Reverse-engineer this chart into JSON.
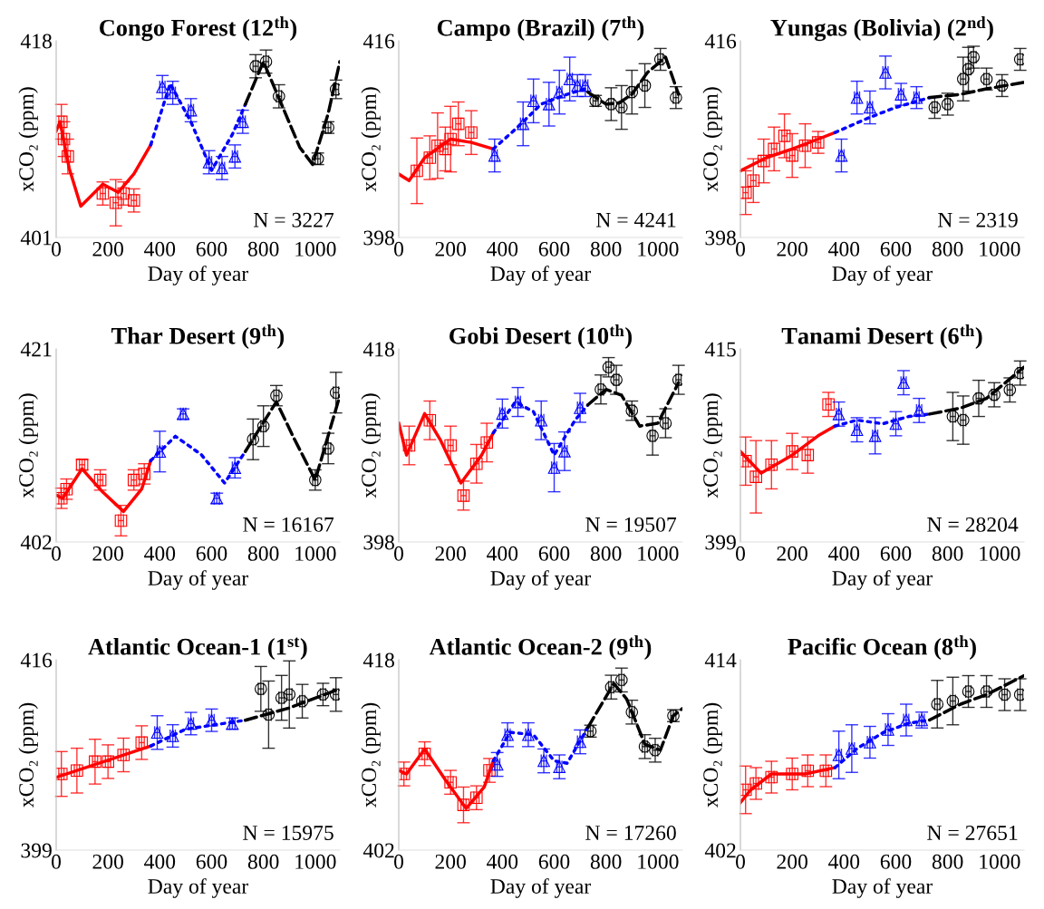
{
  "chart_data": [
    {
      "type": "scatter",
      "title": "Congo Forest (12$^{th}$)",
      "xlabel": "Day of year",
      "ylabel": "xCO₂ (ppm)",
      "xlim": [
        0,
        1095
      ],
      "xticks": [
        0,
        200,
        400,
        600,
        800,
        1000
      ],
      "ylim": [
        401,
        418
      ],
      "yticks": [
        401,
        418
      ],
      "grid": false,
      "legend": false,
      "annotations": [
        "N = 3227"
      ],
      "series": [
        {
          "type": "scatter",
          "color": "#ff0000",
          "marker": "square",
          "x": [
            20,
            30,
            45,
            180,
            230,
            260,
            300
          ],
          "values": [
            411,
            409.5,
            408,
            404.8,
            404,
            404.8,
            404.2
          ],
          "errors": [
            1.5,
            1.5,
            1.5,
            1,
            2,
            1,
            1
          ],
          "xerrors": [
            10,
            10,
            10,
            10,
            10,
            10,
            10
          ]
        },
        {
          "type": "scatter",
          "color": "#0000ff",
          "marker": "triangle",
          "x": [
            410,
            450,
            520,
            590,
            640,
            690,
            720
          ],
          "values": [
            414,
            413.5,
            412,
            407.5,
            407,
            408,
            411
          ],
          "errors": [
            1,
            1,
            1,
            1,
            1,
            1,
            1
          ],
          "xerrors": [
            10,
            10,
            10,
            10,
            10,
            10,
            10
          ]
        },
        {
          "type": "scatter",
          "color": "#000000",
          "marker": "circle",
          "x": [
            770,
            810,
            860,
            1010,
            1050,
            1080
          ],
          "values": [
            415.8,
            416.2,
            413.2,
            407.8,
            410.5,
            413.8
          ],
          "errors": [
            1,
            1,
            1,
            0.5,
            0.5,
            0.8
          ],
          "xerrors": [
            10,
            10,
            10,
            10,
            10,
            10
          ]
        },
        {
          "type": "line",
          "color": "#ff0000",
          "line_style": "solid",
          "x": [
            0,
            15,
            50,
            95,
            180,
            240,
            300,
            365
          ],
          "values": [
            410.2,
            411,
            407,
            403.7,
            405.6,
            404.9,
            406.5,
            409
          ]
        },
        {
          "type": "line",
          "color": "#0000ff",
          "line_style": "dotted",
          "x": [
            365,
            440,
            520,
            600,
            680,
            730
          ],
          "values": [
            409,
            414.3,
            411,
            406.8,
            409.9,
            412.5
          ]
        },
        {
          "type": "line",
          "color": "#000000",
          "line_style": "dashed",
          "x": [
            730,
            800,
            870,
            940,
            990,
            1050,
            1095
          ],
          "values": [
            412.5,
            416.2,
            412.5,
            408.8,
            407.3,
            411.7,
            416.2
          ]
        }
      ]
    },
    {
      "type": "scatter",
      "title": "Campo (Brazil) (7$^{th}$)",
      "xlabel": "Day of year",
      "ylabel": "xCO₂ (ppm)",
      "xlim": [
        0,
        1095
      ],
      "xticks": [
        0,
        200,
        400,
        600,
        800,
        1000
      ],
      "ylim": [
        398,
        416
      ],
      "yticks": [
        398,
        416
      ],
      "grid": false,
      "legend": false,
      "annotations": [
        "N = 4241"
      ],
      "series": [
        {
          "type": "scatter",
          "color": "#ff0000",
          "marker": "square",
          "x": [
            70,
            120,
            150,
            180,
            200,
            230,
            280
          ],
          "values": [
            404.1,
            405.3,
            406.4,
            406.1,
            407,
            408.4,
            407.6
          ],
          "errors": [
            3,
            2,
            3,
            2,
            3,
            2,
            2
          ],
          "xerrors": [
            10,
            10,
            10,
            10,
            10,
            10,
            10
          ]
        },
        {
          "type": "scatter",
          "color": "#0000ff",
          "marker": "triangle",
          "x": [
            370,
            480,
            520,
            580,
            620,
            660,
            690,
            720
          ],
          "values": [
            405.5,
            408.4,
            410.5,
            410.2,
            411.3,
            412.5,
            411.9,
            411.9
          ],
          "errors": [
            1.5,
            2,
            2,
            2,
            2,
            2,
            1,
            1
          ],
          "xerrors": [
            10,
            10,
            10,
            10,
            10,
            10,
            10,
            10
          ]
        },
        {
          "type": "scatter",
          "color": "#000000",
          "marker": "circle",
          "x": [
            760,
            820,
            860,
            900,
            950,
            1010,
            1070
          ],
          "values": [
            410.5,
            410.2,
            409.9,
            411.3,
            411.9,
            414.3,
            410.8
          ],
          "errors": [
            0.5,
            1.5,
            2,
            2,
            2,
            1,
            1
          ],
          "xerrors": [
            10,
            10,
            10,
            10,
            10,
            10,
            10
          ]
        },
        {
          "type": "line",
          "color": "#ff0000",
          "line_style": "solid",
          "x": [
            0,
            40,
            100,
            200,
            280,
            365
          ],
          "values": [
            403.8,
            403.2,
            405.3,
            407,
            406.7,
            406.1
          ]
        },
        {
          "type": "line",
          "color": "#0000ff",
          "line_style": "dotted",
          "x": [
            365,
            450,
            550,
            650,
            720
          ],
          "values": [
            406.1,
            407.9,
            410.2,
            411.1,
            411.6
          ]
        },
        {
          "type": "line",
          "color": "#000000",
          "line_style": "dashed",
          "x": [
            730,
            800,
            850,
            900,
            960,
            1030,
            1080
          ],
          "values": [
            411.3,
            410.2,
            410.3,
            411.1,
            413.1,
            414.5,
            411.1
          ]
        }
      ]
    },
    {
      "type": "scatter",
      "title": "Yungas (Bolivia) (2$^{nd}$)",
      "xlabel": "Day of year",
      "ylabel": "xCO₂ (ppm)",
      "xlim": [
        0,
        1095
      ],
      "xticks": [
        0,
        200,
        400,
        600,
        800,
        1000
      ],
      "ylim": [
        398,
        416
      ],
      "yticks": [
        398,
        416
      ],
      "grid": false,
      "legend": false,
      "annotations": [
        "N = 2319"
      ],
      "series": [
        {
          "type": "scatter",
          "color": "#ff0000",
          "marker": "square",
          "x": [
            20,
            50,
            90,
            130,
            170,
            200,
            250,
            300
          ],
          "values": [
            402.1,
            403.2,
            405,
            406.1,
            407.3,
            405.5,
            406.4,
            406.7
          ],
          "errors": [
            2,
            2,
            2,
            2,
            2,
            2,
            2,
            1
          ],
          "xerrors": [
            10,
            10,
            10,
            10,
            10,
            10,
            10,
            10
          ]
        },
        {
          "type": "scatter",
          "color": "#0000ff",
          "marker": "triangle",
          "x": [
            390,
            450,
            500,
            560,
            620,
            680
          ],
          "values": [
            405.5,
            410.8,
            409.9,
            413.1,
            411.1,
            410.8
          ],
          "errors": [
            1.5,
            1.5,
            1.5,
            1.5,
            1,
            1
          ],
          "xerrors": [
            10,
            10,
            10,
            10,
            10,
            10
          ]
        },
        {
          "type": "scatter",
          "color": "#000000",
          "marker": "circle",
          "x": [
            750,
            800,
            860,
            880,
            900,
            950,
            1010,
            1080
          ],
          "values": [
            409.9,
            410.2,
            412.5,
            413.4,
            414.5,
            412.5,
            411.9,
            414.3
          ],
          "errors": [
            1,
            1,
            2,
            2,
            1,
            1,
            1,
            1
          ],
          "xerrors": [
            10,
            10,
            10,
            10,
            10,
            10,
            10,
            10
          ]
        },
        {
          "type": "line",
          "color": "#ff0000",
          "line_style": "solid",
          "x": [
            0,
            100,
            200,
            300,
            365
          ],
          "values": [
            404.1,
            405.3,
            406.1,
            407,
            407.6
          ]
        },
        {
          "type": "line",
          "color": "#0000ff",
          "line_style": "dotted",
          "x": [
            365,
            500,
            600,
            730
          ],
          "values": [
            407.6,
            409,
            409.9,
            410.8
          ]
        },
        {
          "type": "line",
          "color": "#000000",
          "line_style": "dashed",
          "x": [
            730,
            850,
            950,
            1095
          ],
          "values": [
            410.8,
            411.1,
            411.6,
            412.2
          ]
        }
      ]
    },
    {
      "type": "scatter",
      "title": "Thar Desert (9$^{th}$)",
      "xlabel": "Day of year",
      "ylabel": "xCO₂ (ppm)",
      "xlim": [
        0,
        1095
      ],
      "xticks": [
        0,
        200,
        400,
        600,
        800,
        1000
      ],
      "ylim": [
        402,
        421
      ],
      "yticks": [
        402,
        421
      ],
      "grid": false,
      "legend": false,
      "annotations": [
        "N = 16167"
      ],
      "series": [
        {
          "type": "scatter",
          "color": "#ff0000",
          "marker": "square",
          "x": [
            20,
            40,
            100,
            170,
            250,
            300,
            340
          ],
          "values": [
            406.3,
            407.2,
            409.6,
            408.1,
            404.1,
            408.1,
            408.7
          ],
          "errors": [
            1,
            1,
            0.5,
            1,
            1.5,
            1,
            1
          ],
          "xerrors": [
            10,
            10,
            10,
            10,
            10,
            10,
            10
          ]
        },
        {
          "type": "scatter",
          "color": "#0000ff",
          "marker": "triangle",
          "x": [
            400,
            490,
            620,
            690
          ],
          "values": [
            410.9,
            414.6,
            406.3,
            409.3
          ],
          "errors": [
            2,
            0.5,
            0.5,
            1
          ],
          "xerrors": [
            10,
            10,
            10,
            10
          ]
        },
        {
          "type": "scatter",
          "color": "#000000",
          "marker": "circle",
          "x": [
            760,
            800,
            850,
            1000,
            1050,
            1080
          ],
          "values": [
            412.1,
            413.4,
            416.4,
            408.1,
            411.2,
            416.7
          ],
          "errors": [
            2,
            2,
            1,
            1,
            1.5,
            2
          ],
          "xerrors": [
            10,
            10,
            10,
            10,
            10,
            10
          ]
        },
        {
          "type": "line",
          "color": "#ff0000",
          "line_style": "solid",
          "x": [
            0,
            25,
            100,
            180,
            260,
            330,
            365
          ],
          "values": [
            406.6,
            406.3,
            409.2,
            406.9,
            405,
            407.2,
            410
          ]
        },
        {
          "type": "line",
          "color": "#0000ff",
          "line_style": "dotted",
          "x": [
            365,
            460,
            560,
            650,
            730
          ],
          "values": [
            410,
            412.4,
            410.6,
            407.8,
            410.9
          ]
        },
        {
          "type": "line",
          "color": "#000000",
          "line_style": "dashed",
          "x": [
            730,
            850,
            920,
            1000,
            1095
          ],
          "values": [
            410.9,
            415.8,
            412.1,
            408.1,
            416.4
          ]
        }
      ]
    },
    {
      "type": "scatter",
      "title": "Gobi Desert (10$^{th}$)",
      "xlabel": "Day of year",
      "ylabel": "xCO₂ (ppm)",
      "xlim": [
        0,
        1095
      ],
      "xticks": [
        0,
        200,
        400,
        600,
        800,
        1000
      ],
      "ylim": [
        398,
        418
      ],
      "yticks": [
        398,
        418
      ],
      "grid": false,
      "legend": false,
      "annotations": [
        "N = 19507"
      ],
      "series": [
        {
          "type": "scatter",
          "color": "#ff0000",
          "marker": "square",
          "x": [
            40,
            120,
            200,
            250,
            300,
            340
          ],
          "values": [
            408,
            410.6,
            408,
            402.8,
            406.1,
            408.3
          ],
          "errors": [
            2,
            2,
            2,
            1.5,
            2,
            2
          ],
          "xerrors": [
            10,
            10,
            10,
            10,
            10,
            10
          ]
        },
        {
          "type": "scatter",
          "color": "#0000ff",
          "marker": "triangle",
          "x": [
            400,
            460,
            550,
            600,
            640,
            700
          ],
          "values": [
            411.3,
            412.5,
            410.6,
            405.7,
            407.4,
            411.9
          ],
          "errors": [
            1.5,
            1.5,
            2,
            2.5,
            2,
            1.5
          ],
          "xerrors": [
            10,
            10,
            10,
            10,
            10,
            10
          ]
        },
        {
          "type": "scatter",
          "color": "#000000",
          "marker": "circle",
          "x": [
            780,
            810,
            840,
            900,
            980,
            1030,
            1080
          ],
          "values": [
            413.8,
            416.1,
            414.8,
            411.6,
            409,
            410.3,
            414.8
          ],
          "errors": [
            1.5,
            1,
            1.5,
            1,
            2,
            1.5,
            1.5
          ],
          "xerrors": [
            10,
            10,
            10,
            10,
            10,
            10,
            10
          ]
        },
        {
          "type": "line",
          "color": "#ff0000",
          "line_style": "solid",
          "x": [
            0,
            30,
            100,
            160,
            240,
            320,
            365
          ],
          "values": [
            410.3,
            407,
            411.3,
            408.6,
            404.1,
            407,
            409.3
          ]
        },
        {
          "type": "line",
          "color": "#0000ff",
          "line_style": "dotted",
          "x": [
            365,
            450,
            520,
            600,
            680,
            730
          ],
          "values": [
            409.3,
            412.5,
            411.5,
            407,
            410.6,
            412.2
          ]
        },
        {
          "type": "line",
          "color": "#000000",
          "line_style": "dashed",
          "x": [
            730,
            800,
            860,
            930,
            1000,
            1080
          ],
          "values": [
            412.2,
            413.8,
            413.2,
            410,
            410.3,
            414.5
          ]
        }
      ]
    },
    {
      "type": "scatter",
      "title": "Tanami Desert (6$^{th}$)",
      "xlabel": "Day of year",
      "ylabel": "xCO₂ (ppm)",
      "xlim": [
        0,
        1095
      ],
      "xticks": [
        0,
        200,
        400,
        600,
        800,
        1000
      ],
      "ylim": [
        399,
        415
      ],
      "yticks": [
        399,
        415
      ],
      "grid": false,
      "legend": false,
      "annotations": [
        "N = 28204"
      ],
      "series": [
        {
          "type": "scatter",
          "color": "#ff0000",
          "marker": "square",
          "x": [
            20,
            60,
            120,
            200,
            260,
            340
          ],
          "values": [
            405.7,
            404.4,
            405.4,
            406.5,
            406.2,
            410.4
          ],
          "errors": [
            2,
            3,
            2,
            1.5,
            1.5,
            1
          ],
          "xerrors": [
            10,
            10,
            10,
            10,
            10,
            10
          ]
        },
        {
          "type": "scatter",
          "color": "#0000ff",
          "marker": "triangle",
          "x": [
            380,
            450,
            520,
            600,
            630,
            690
          ],
          "values": [
            409.6,
            408.3,
            407.8,
            408.8,
            412.2,
            409.9
          ],
          "errors": [
            1,
            1,
            1.5,
            1,
            1,
            1
          ],
          "xerrors": [
            10,
            10,
            10,
            10,
            10,
            10
          ]
        },
        {
          "type": "scatter",
          "color": "#000000",
          "marker": "circle",
          "x": [
            820,
            860,
            920,
            980,
            1040,
            1080
          ],
          "values": [
            409.4,
            409.1,
            410.9,
            411.2,
            411.6,
            413
          ],
          "errors": [
            2,
            2,
            1.5,
            1,
            1,
            1
          ],
          "xerrors": [
            10,
            10,
            10,
            10,
            10,
            10
          ]
        },
        {
          "type": "line",
          "color": "#ff0000",
          "line_style": "solid",
          "x": [
            0,
            80,
            200,
            300,
            365
          ],
          "values": [
            406.5,
            404.7,
            406.2,
            407.8,
            408.6
          ]
        },
        {
          "type": "line",
          "color": "#0000ff",
          "line_style": "dotted",
          "x": [
            365,
            450,
            550,
            650,
            730
          ],
          "values": [
            408.6,
            409.1,
            408.8,
            409.4,
            409.6
          ]
        },
        {
          "type": "line",
          "color": "#000000",
          "line_style": "dashed",
          "x": [
            730,
            850,
            950,
            1095
          ],
          "values": [
            409.6,
            410.1,
            410.9,
            413.5
          ]
        }
      ]
    },
    {
      "type": "scatter",
      "title": "Atlantic Ocean-1 (1$^{st}$)",
      "xlabel": "Day of year",
      "ylabel": "xCO₂ (ppm)",
      "xlim": [
        0,
        1095
      ],
      "xticks": [
        0,
        200,
        400,
        600,
        800,
        1000
      ],
      "ylim": [
        399,
        416
      ],
      "yticks": [
        399,
        416
      ],
      "grid": false,
      "legend": false,
      "annotations": [
        "N = 15975"
      ],
      "series": [
        {
          "type": "scatter",
          "color": "#ff0000",
          "marker": "square",
          "x": [
            20,
            80,
            150,
            200,
            260,
            330
          ],
          "values": [
            405.8,
            406.1,
            406.9,
            406.9,
            407.5,
            408.6
          ],
          "errors": [
            2,
            2,
            2,
            1.5,
            1.5,
            1.5
          ],
          "xerrors": [
            10,
            10,
            10,
            10,
            10,
            10
          ]
        },
        {
          "type": "scatter",
          "color": "#0000ff",
          "marker": "triangle",
          "x": [
            390,
            450,
            520,
            600,
            680
          ],
          "values": [
            409.5,
            409.2,
            410.3,
            410.6,
            410.3
          ],
          "errors": [
            1.5,
            1,
            1,
            1,
            0.5
          ],
          "xerrors": [
            10,
            10,
            10,
            10,
            10
          ]
        },
        {
          "type": "scatter",
          "color": "#000000",
          "marker": "circle",
          "x": [
            790,
            820,
            870,
            900,
            950,
            1030,
            1080
          ],
          "values": [
            413.4,
            411.1,
            412.6,
            412.9,
            412.3,
            412.9,
            412.9
          ],
          "errors": [
            2,
            3,
            2,
            3,
            1.5,
            1,
            1.5
          ],
          "xerrors": [
            10,
            10,
            10,
            10,
            10,
            10,
            10
          ]
        },
        {
          "type": "line",
          "color": "#ff0000",
          "line_style": "solid",
          "x": [
            0,
            365
          ],
          "values": [
            405.5,
            408.3
          ]
        },
        {
          "type": "line",
          "color": "#0000ff",
          "line_style": "dotted",
          "x": [
            365,
            500,
            730
          ],
          "values": [
            408.3,
            409.8,
            410.6
          ]
        },
        {
          "type": "line",
          "color": "#000000",
          "line_style": "dashed",
          "x": [
            730,
            900,
            1095
          ],
          "values": [
            410.6,
            411.7,
            413.4
          ]
        }
      ]
    },
    {
      "type": "scatter",
      "title": "Atlantic Ocean-2 (9$^{th}$)",
      "xlabel": "Day of year",
      "ylabel": "xCO₂ (ppm)",
      "xlim": [
        0,
        1095
      ],
      "xticks": [
        0,
        200,
        400,
        600,
        800,
        1000
      ],
      "ylim": [
        402,
        418
      ],
      "yticks": [
        402,
        418
      ],
      "grid": false,
      "legend": false,
      "annotations": [
        "N = 17260"
      ],
      "series": [
        {
          "type": "scatter",
          "color": "#ff0000",
          "marker": "square",
          "x": [
            20,
            100,
            200,
            250,
            300,
            350
          ],
          "values": [
            408.4,
            410.1,
            407.7,
            405.8,
            406.4,
            408.7
          ],
          "errors": [
            1,
            1,
            1,
            1.5,
            1,
            1
          ],
          "xerrors": [
            10,
            10,
            10,
            10,
            10,
            10
          ]
        },
        {
          "type": "scatter",
          "color": "#0000ff",
          "marker": "triangle",
          "x": [
            380,
            420,
            500,
            560,
            620,
            700
          ],
          "values": [
            409.2,
            411.7,
            411.7,
            409.5,
            409,
            411.1
          ],
          "errors": [
            1,
            1,
            1,
            1,
            1,
            1
          ],
          "xerrors": [
            10,
            10,
            10,
            10,
            10,
            10
          ]
        },
        {
          "type": "scatter",
          "color": "#000000",
          "marker": "circle",
          "x": [
            740,
            820,
            860,
            900,
            950,
            990,
            1060
          ],
          "values": [
            412,
            415.7,
            416.3,
            413.6,
            410.7,
            410.4,
            413.3
          ],
          "errors": [
            0.5,
            1,
            1,
            1,
            1,
            1,
            0.5
          ],
          "xerrors": [
            10,
            10,
            10,
            10,
            10,
            10,
            10
          ]
        },
        {
          "type": "line",
          "color": "#ff0000",
          "line_style": "solid",
          "x": [
            0,
            30,
            100,
            180,
            260,
            330,
            365
          ],
          "values": [
            408.7,
            408.4,
            410.5,
            407.9,
            405.5,
            407.3,
            409.5
          ]
        },
        {
          "type": "line",
          "color": "#0000ff",
          "line_style": "dotted",
          "x": [
            365,
            430,
            520,
            600,
            650,
            730
          ],
          "values": [
            409.5,
            411.9,
            411.7,
            409.5,
            409.3,
            412.3
          ]
        },
        {
          "type": "line",
          "color": "#000000",
          "line_style": "dashed",
          "x": [
            730,
            830,
            880,
            950,
            1010,
            1060,
            1095
          ],
          "values": [
            412.3,
            416,
            414.7,
            410.9,
            410.4,
            413.3,
            413.9
          ]
        }
      ]
    },
    {
      "type": "scatter",
      "title": "Pacific Ocean (8$^{th}$)",
      "xlabel": "Day of year",
      "ylabel": "xCO₂ (ppm)",
      "xlim": [
        0,
        1095
      ],
      "xticks": [
        0,
        200,
        400,
        600,
        800,
        1000
      ],
      "ylim": [
        402,
        414
      ],
      "yticks": [
        402,
        414
      ],
      "grid": false,
      "legend": false,
      "annotations": [
        "N = 27651"
      ],
      "series": [
        {
          "type": "scatter",
          "color": "#ff0000",
          "marker": "square",
          "x": [
            20,
            60,
            120,
            200,
            260,
            330
          ],
          "values": [
            405.8,
            406.2,
            406.6,
            406.8,
            407,
            407
          ],
          "errors": [
            1.5,
            1,
            1,
            1,
            1,
            1
          ],
          "xerrors": [
            10,
            10,
            10,
            10,
            10,
            10
          ]
        },
        {
          "type": "scatter",
          "color": "#0000ff",
          "marker": "triangle",
          "x": [
            380,
            430,
            500,
            570,
            640,
            700
          ],
          "values": [
            408,
            408.4,
            408.8,
            409.6,
            410.2,
            410.2
          ],
          "errors": [
            1.5,
            1.5,
            1,
            1,
            1,
            0.5
          ],
          "xerrors": [
            10,
            10,
            10,
            10,
            10,
            10
          ]
        },
        {
          "type": "scatter",
          "color": "#000000",
          "marker": "circle",
          "x": [
            760,
            820,
            880,
            950,
            1020,
            1080
          ],
          "values": [
            411.2,
            411.4,
            412,
            412,
            411.8,
            411.8
          ],
          "errors": [
            1.5,
            1.5,
            1,
            1,
            1,
            1
          ],
          "xerrors": [
            10,
            10,
            10,
            10,
            10,
            10
          ]
        },
        {
          "type": "line",
          "color": "#ff0000",
          "line_style": "solid",
          "x": [
            0,
            40,
            120,
            250,
            365
          ],
          "values": [
            405,
            405.8,
            406.8,
            406.8,
            407.2
          ]
        },
        {
          "type": "line",
          "color": "#0000ff",
          "line_style": "dotted",
          "x": [
            365,
            450,
            550,
            650,
            730
          ],
          "values": [
            407.2,
            408.4,
            409.4,
            410,
            410.2
          ]
        },
        {
          "type": "line",
          "color": "#000000",
          "line_style": "dashed",
          "x": [
            730,
            850,
            950,
            1095
          ],
          "values": [
            410.2,
            411.2,
            411.8,
            413
          ]
        }
      ]
    }
  ]
}
